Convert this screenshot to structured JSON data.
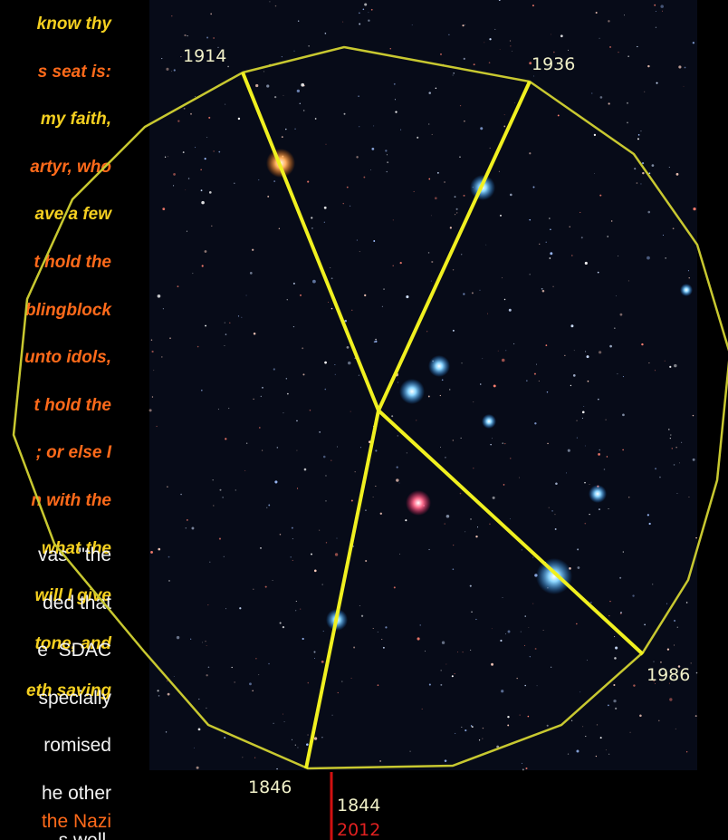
{
  "text": {
    "quote_lines": [
      "know thy",
      "s seat is:",
      "my faith,",
      "artyr, who",
      "ave a few",
      "t hold the",
      "blingblock",
      "unto idols,",
      "t hold the",
      "; or else I",
      "n with the",
      "what the",
      "will I give",
      "tone, and",
      "eth saving"
    ],
    "body_lines": [
      "vas  \"the",
      "ded that",
      "e  SDAC",
      "specially",
      "romised",
      "he other",
      "s well."
    ],
    "next_line": "the Nazi"
  },
  "image": {
    "labels": {
      "top_left": "1914",
      "top_right": "1936",
      "right": "1986",
      "bottom_left": "1846",
      "bottom_center": "1844",
      "bottom_center_red": "2012"
    }
  }
}
